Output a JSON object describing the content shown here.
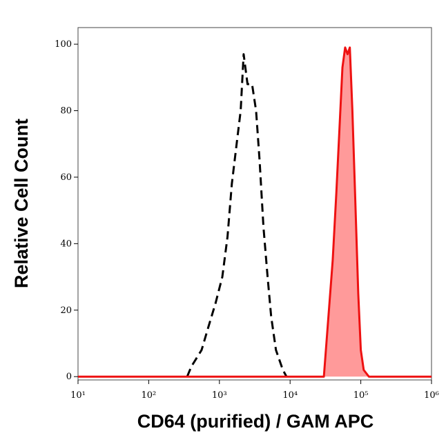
{
  "chart_data": {
    "type": "line",
    "xlabel": "CD64 (purified) / GAM APC",
    "ylabel": "Relative Cell Count",
    "xscale": "log",
    "xlim": [
      10,
      1000000
    ],
    "xticks": [
      {
        "value": 10,
        "label": "10¹"
      },
      {
        "value": 100,
        "label": "10²"
      },
      {
        "value": 1000,
        "label": "10³"
      },
      {
        "value": 10000,
        "label": "10⁴"
      },
      {
        "value": 100000,
        "label": "10⁵"
      },
      {
        "value": 1000000,
        "label": "10⁶"
      }
    ],
    "ylim": [
      -1,
      105
    ],
    "yticks": [
      0,
      20,
      40,
      60,
      80,
      100
    ],
    "series": [
      {
        "color": "#000000",
        "style": "dashed",
        "x": [
          350,
          400,
          560,
          700,
          880,
          1100,
          1300,
          1500,
          1800,
          2000,
          2200,
          2500,
          2900,
          3300,
          3700,
          4200,
          4800,
          5400,
          6300,
          7900,
          8900
        ],
        "values": [
          0,
          3,
          8,
          15,
          22,
          30,
          42,
          58,
          72,
          80,
          97,
          88,
          88,
          80,
          65,
          45,
          30,
          18,
          8,
          2,
          0
        ]
      },
      {
        "color": "#ee1111",
        "fill": "#ff9a9a",
        "style": "solid",
        "x": [
          10,
          30000,
          34000,
          40000,
          45000,
          50000,
          55000,
          60000,
          65000,
          70000,
          76000,
          83000,
          92000,
          100000,
          110000,
          130000,
          1000000
        ],
        "values": [
          0,
          0,
          15,
          35,
          55,
          75,
          93,
          99,
          97,
          99,
          80,
          55,
          25,
          8,
          2,
          0,
          0
        ]
      }
    ]
  }
}
